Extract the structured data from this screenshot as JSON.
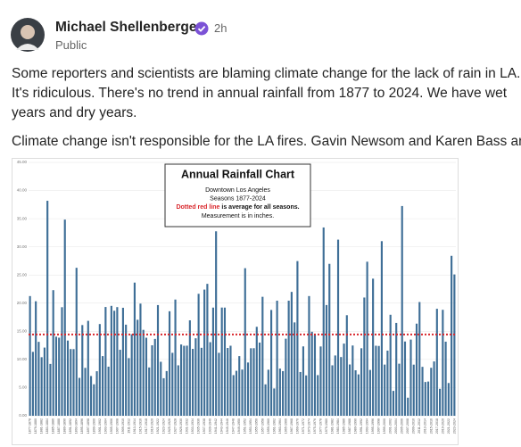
{
  "post": {
    "author": "Michael Shellenberger",
    "time": "2h",
    "audience": "Public",
    "paragraphs": [
      [
        "Some reporters and scientists are blaming climate change for the lack of rain in LA.",
        "It's ridiculous. There's no trend in annual rainfall from 1877 to 2024. We have wet",
        "years and dry years."
      ],
      [
        "Climate change isn't responsible for the LA fires. Gavin Newsom and Karen Bass are."
      ]
    ]
  },
  "chart_data": {
    "type": "bar",
    "title": "Annual Rainfall Chart",
    "subtitle_lines": [
      "Downtown Los Angeles",
      "Seasons  1877-2024"
    ],
    "note": {
      "highlight": "Dotted red line",
      "text": " is average for all seasons."
    },
    "footnote": "Measurement  is in inches.",
    "color": "#3f6f97",
    "average_line": {
      "value": 14.44,
      "color": "#d9262b"
    },
    "ylim": [
      0,
      45
    ],
    "yticks": [
      {
        "value": 0,
        "label": "0.00"
      },
      {
        "value": 5,
        "label": "5.00"
      },
      {
        "value": 10,
        "label": "10.00"
      },
      {
        "value": 15,
        "label": "15.00"
      },
      {
        "value": 20,
        "label": "20.00"
      },
      {
        "value": 25,
        "label": "25.00"
      },
      {
        "value": 30,
        "label": "30.00"
      },
      {
        "value": 35,
        "label": "35.00"
      },
      {
        "value": 40,
        "label": "40.00"
      },
      {
        "value": 45,
        "label": "45.00"
      }
    ],
    "grid": true,
    "categories": [
      "1877-1878",
      null,
      "1879-1880",
      null,
      "1881-1882",
      null,
      "1883-1884",
      null,
      "1885-1886",
      null,
      "1887-1888",
      null,
      "1889-1890",
      null,
      "1891-1892",
      null,
      "1893-1894",
      null,
      "1895-1896",
      null,
      "1897-1898",
      null,
      "1899-1900",
      null,
      "1901-1902",
      null,
      "1903-1904",
      null,
      "1905-1906",
      null,
      "1907-1908",
      null,
      "1909-1910",
      null,
      "1911-1912",
      null,
      "1913-1914",
      null,
      "1915-1916",
      null,
      "1917-1918",
      null,
      "1919-1920",
      null,
      "1921-1922",
      null,
      "1923-1924",
      null,
      "1925-1926",
      null,
      "1927-1928",
      null,
      "1929-1930",
      null,
      "1931-1932",
      null,
      "1933-1934",
      null,
      "1935-1936",
      null,
      "1937-1938",
      null,
      "1939-1940",
      null,
      "1941-1942",
      null,
      "1943-1944",
      null,
      "1945-1946",
      null,
      "1947-1948",
      null,
      "1949-1950",
      null,
      "1951-1952",
      null,
      "1953-1954",
      null,
      "1955-1956",
      null,
      "1957-1958",
      null,
      "1959-1960",
      null,
      "1961-1962",
      null,
      "1963-1964",
      null,
      "1965-1966",
      null,
      "1967-1968",
      null,
      "1969-1970",
      null,
      "1971-1972",
      null,
      "1973-1974",
      null,
      "1975-1976",
      null,
      "1977-1978",
      null,
      "1979-1980",
      null,
      "1981-1982",
      null,
      "1983-1984",
      null,
      "1985-1986",
      null,
      "1987-1988",
      null,
      "1989-1990",
      null,
      "1991-1992",
      null,
      "1993-1994",
      null,
      "1995-1996",
      null,
      "1997-1998",
      null,
      "1999-2000",
      null,
      "2001-2002",
      null,
      "2003-2004",
      null,
      "2005-2006",
      null,
      "2007-2008",
      null,
      "2009-2010",
      null,
      "2011-2012",
      null,
      "2013-2014",
      null,
      "2015-2016",
      null,
      "2017-2018",
      null,
      "2019-2020",
      null,
      "2021-2022",
      null,
      "2023-2024"
    ],
    "values": [
      21.26,
      11.35,
      20.34,
      13.13,
      10.4,
      12.11,
      38.18,
      9.21,
      22.31,
      14.05,
      13.87,
      19.28,
      34.84,
      13.36,
      11.85,
      11.84,
      26.28,
      6.73,
      16.11,
      8.51,
      16.86,
      7.06,
      5.59,
      7.91,
      16.29,
      10.6,
      19.32,
      8.72,
      19.52,
      18.65,
      19.3,
      11.72,
      19.18,
      16.18,
      10.24,
      14.47,
      23.65,
      17.05,
      19.92,
      15.26,
      13.86,
      8.58,
      12.52,
      13.65,
      19.66,
      9.59,
      6.67,
      7.94,
      18.56,
      11.18,
      20.64,
      8.96,
      12.66,
      12.43,
      12.45,
      16.95,
      11.88,
      13.76,
      21.66,
      12.07,
      22.41,
      23.43,
      13.07,
      19.21,
      32.76,
      11.18,
      19.22,
      19.21,
      12.04,
      12.44,
      7.22,
      7.99,
      10.6,
      8.21,
      26.21,
      9.46,
      11.99,
      12.0,
      15.8,
      13.0,
      21.13,
      5.58,
      8.18,
      18.79,
      4.85,
      20.44,
      8.38,
      7.93,
      13.69,
      20.44,
      22.0,
      16.58,
      27.47,
      7.77,
      12.32,
      7.17,
      21.26,
      14.92,
      14.35,
      7.22,
      12.31,
      33.44,
      19.67,
      26.98,
      8.96,
      10.71,
      31.28,
      10.43,
      12.82,
      17.86,
      9.11,
      12.48,
      8.08,
      7.35,
      11.99,
      21.0,
      27.36,
      8.14,
      24.35,
      12.44,
      12.4,
      31.01,
      9.09,
      11.57,
      17.94,
      4.42,
      16.49,
      9.25,
      37.25,
      13.19,
      3.21,
      13.53,
      9.08,
      16.36,
      20.2,
      8.69,
      6.0,
      6.08,
      8.52,
      9.65,
      19.0,
      4.79,
      18.82,
      13.16,
      5.82,
      28.4,
      25.1
    ]
  }
}
